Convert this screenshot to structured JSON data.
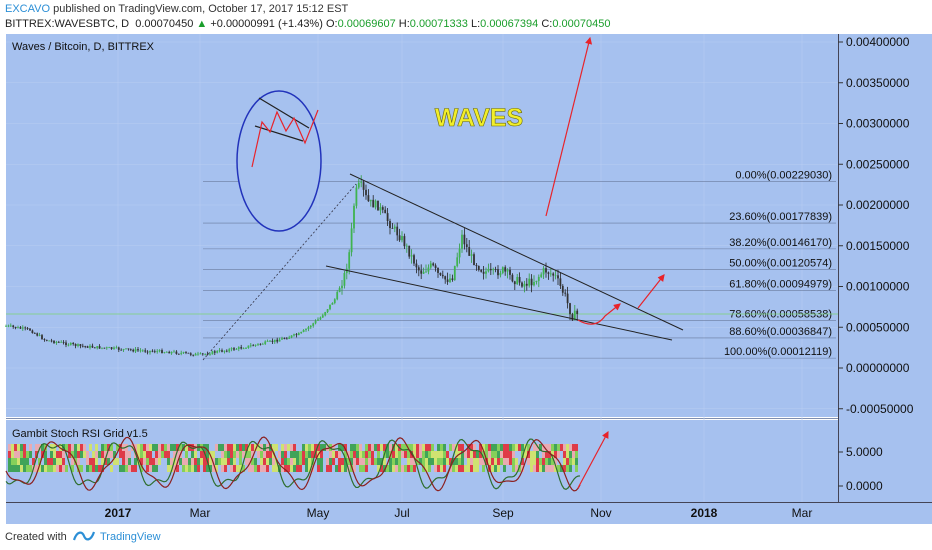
{
  "header": {
    "author": "EXCAVO",
    "published": "published on TradingView.com, October 17, 2017 15:12 EST",
    "symbol": "BITTREX:WAVESBTC, D",
    "price": "0.00070450",
    "change": "+0.00000991 (+1.43%)",
    "open_label": "O:",
    "open": "0.00069607",
    "high_label": "H:",
    "high": "0.00071333",
    "low_label": "L:",
    "low": "0.00067394",
    "close_label": "C:",
    "close": "0.00070450"
  },
  "chart": {
    "title": "Waves / Bitcoin, D, BITTREX",
    "watermark": "WAVES",
    "y_ticks": [
      "0.00400000",
      "0.00350000",
      "0.00300000",
      "0.00250000",
      "0.00200000",
      "0.00150000",
      "0.00100000",
      "0.00050000",
      "0.00000000",
      "-0.00050000"
    ],
    "fib_levels": [
      {
        "label": "0.00%(0.00229030)",
        "value": 0.0022903
      },
      {
        "label": "23.60%(0.00177839)",
        "value": 0.00177839
      },
      {
        "label": "38.20%(0.00146170)",
        "value": 0.0014617
      },
      {
        "label": "50.00%(0.00120574)",
        "value": 0.00120574
      },
      {
        "label": "61.80%(0.00094979)",
        "value": 0.00094979
      },
      {
        "label": "78.60%(0.00058538)",
        "value": 0.00058538
      },
      {
        "label": "88.60%(0.00036847)",
        "value": 0.00036847
      },
      {
        "label": "100.00%(0.00012119)",
        "value": 0.00012119
      }
    ],
    "x_ticks": [
      "2017",
      "Mar",
      "May",
      "Jul",
      "Sep",
      "Nov",
      "2018",
      "Mar"
    ]
  },
  "indicator": {
    "title": "Gambit Stoch RSI Grid v1.5",
    "y_ticks": [
      "5.0000",
      "0.0000"
    ]
  },
  "footer": {
    "made_with": "Created with",
    "brand": "TradingView"
  },
  "colors": {
    "background": "#a6c1ef",
    "bull": "#2e9e3e",
    "bear": "#222222",
    "arrow": "#e8232a",
    "fib": "#5a6a8a"
  }
}
